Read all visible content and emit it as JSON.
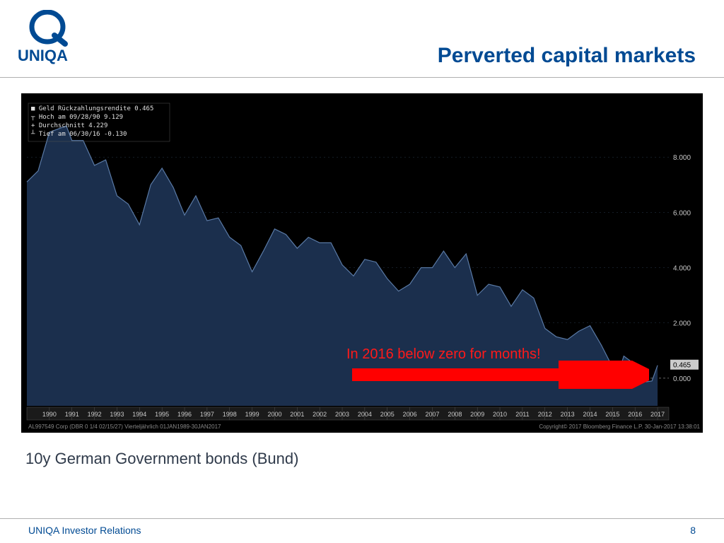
{
  "brand": {
    "name": "UNIQA",
    "color": "#004a93"
  },
  "title": {
    "text": "Perverted capital markets",
    "color": "#004a93"
  },
  "subtitle": {
    "text": "10y German Government bonds (Bund)",
    "color": "#2f3a4a"
  },
  "footer": {
    "left": "UNIQA Investor Relations",
    "page": "8",
    "color": "#004a93"
  },
  "chart": {
    "type": "area",
    "background_color": "#000000",
    "plot_fill": "#1b2f4d",
    "plot_stroke": "#5a7aa6",
    "stroke_width": 1.2,
    "grid_color": "#2a3a4d",
    "axis_text_color": "#c8c8c8",
    "axis_fontsize": 10,
    "ylim": [
      -1,
      10
    ],
    "ytick_step": 2,
    "yticks": [
      "8.000",
      "6.000",
      "4.000",
      "2.000",
      "0.000"
    ],
    "last_label": "0.465",
    "last_label_bg": "#cccccc",
    "series": [
      {
        "x": 1989.0,
        "y": 7.1
      },
      {
        "x": 1989.5,
        "y": 7.5
      },
      {
        "x": 1990.0,
        "y": 8.9
      },
      {
        "x": 1990.75,
        "y": 9.13
      },
      {
        "x": 1991.0,
        "y": 8.6
      },
      {
        "x": 1991.5,
        "y": 8.6
      },
      {
        "x": 1992.0,
        "y": 7.7
      },
      {
        "x": 1992.5,
        "y": 7.9
      },
      {
        "x": 1993.0,
        "y": 6.6
      },
      {
        "x": 1993.5,
        "y": 6.3
      },
      {
        "x": 1994.0,
        "y": 5.55
      },
      {
        "x": 1994.5,
        "y": 7.0
      },
      {
        "x": 1995.0,
        "y": 7.6
      },
      {
        "x": 1995.5,
        "y": 6.9
      },
      {
        "x": 1996.0,
        "y": 5.9
      },
      {
        "x": 1996.5,
        "y": 6.6
      },
      {
        "x": 1997.0,
        "y": 5.7
      },
      {
        "x": 1997.5,
        "y": 5.8
      },
      {
        "x": 1998.0,
        "y": 5.1
      },
      {
        "x": 1998.5,
        "y": 4.8
      },
      {
        "x": 1999.0,
        "y": 3.85
      },
      {
        "x": 1999.5,
        "y": 4.6
      },
      {
        "x": 2000.0,
        "y": 5.4
      },
      {
        "x": 2000.5,
        "y": 5.2
      },
      {
        "x": 2001.0,
        "y": 4.7
      },
      {
        "x": 2001.5,
        "y": 5.1
      },
      {
        "x": 2002.0,
        "y": 4.9
      },
      {
        "x": 2002.5,
        "y": 4.9
      },
      {
        "x": 2003.0,
        "y": 4.1
      },
      {
        "x": 2003.5,
        "y": 3.7
      },
      {
        "x": 2004.0,
        "y": 4.3
      },
      {
        "x": 2004.5,
        "y": 4.2
      },
      {
        "x": 2005.0,
        "y": 3.6
      },
      {
        "x": 2005.5,
        "y": 3.15
      },
      {
        "x": 2006.0,
        "y": 3.4
      },
      {
        "x": 2006.5,
        "y": 4.0
      },
      {
        "x": 2007.0,
        "y": 4.0
      },
      {
        "x": 2007.5,
        "y": 4.6
      },
      {
        "x": 2008.0,
        "y": 4.0
      },
      {
        "x": 2008.5,
        "y": 4.5
      },
      {
        "x": 2009.0,
        "y": 3.0
      },
      {
        "x": 2009.5,
        "y": 3.4
      },
      {
        "x": 2010.0,
        "y": 3.3
      },
      {
        "x": 2010.5,
        "y": 2.6
      },
      {
        "x": 2011.0,
        "y": 3.2
      },
      {
        "x": 2011.5,
        "y": 2.9
      },
      {
        "x": 2012.0,
        "y": 1.8
      },
      {
        "x": 2012.5,
        "y": 1.5
      },
      {
        "x": 2013.0,
        "y": 1.4
      },
      {
        "x": 2013.5,
        "y": 1.7
      },
      {
        "x": 2014.0,
        "y": 1.9
      },
      {
        "x": 2014.5,
        "y": 1.2
      },
      {
        "x": 2015.0,
        "y": 0.4
      },
      {
        "x": 2015.25,
        "y": 0.15
      },
      {
        "x": 2015.5,
        "y": 0.8
      },
      {
        "x": 2016.0,
        "y": 0.5
      },
      {
        "x": 2016.5,
        "y": -0.13
      },
      {
        "x": 2016.75,
        "y": -0.1
      },
      {
        "x": 2017.0,
        "y": 0.465
      }
    ],
    "xlim": [
      1989,
      2017.5
    ],
    "xticks": [
      1990,
      1991,
      1992,
      1993,
      1994,
      1995,
      1996,
      1997,
      1998,
      1999,
      2000,
      2001,
      2002,
      2003,
      2004,
      2005,
      2006,
      2007,
      2008,
      2009,
      2010,
      2011,
      2012,
      2013,
      2014,
      2015,
      2016,
      2017
    ],
    "legend_box": {
      "lines": [
        "■ Geld Rückzahlungsrendite   0.465",
        "┬ Hoch am 09/28/90           9.129",
        "+ Durchschnitt               4.229",
        "┴ Tief am 06/30/16          -0.130"
      ],
      "text_color": "#e0e0e0",
      "legend_fontsize": 9
    },
    "bottom_text_left": "AL997549 Corp (DBR 0 1/4 02/15/27)   Vierteljährlich 01JAN1989-30JAN2017",
    "bottom_text_right": "Copyright© 2017 Bloomberg Finance L.P.          30-Jan-2017 13:38:01"
  },
  "annotation": {
    "text": "In 2016 below zero for months!",
    "color": "#ff1a1a",
    "fontsize": 20,
    "arrow_color": "#ff0000"
  }
}
